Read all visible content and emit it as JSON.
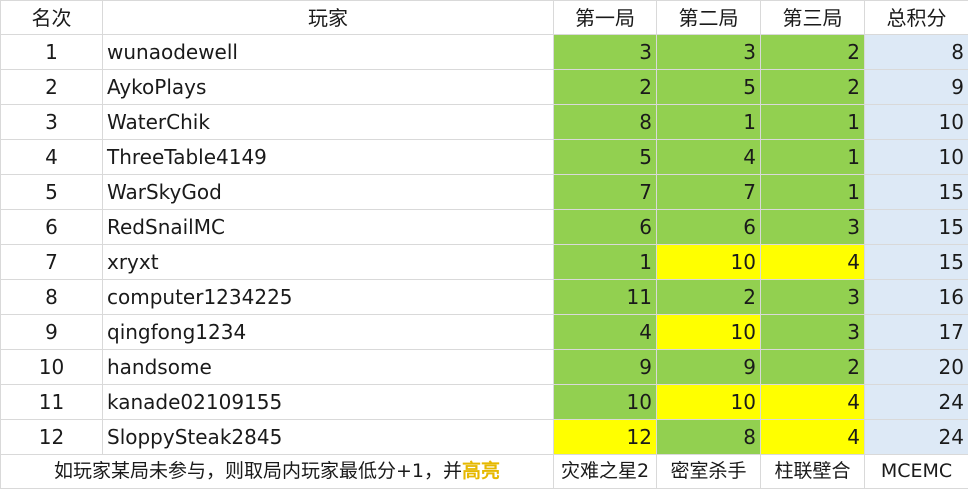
{
  "header": {
    "rank": "名次",
    "player": "玩家",
    "game1": "第一局",
    "game2": "第二局",
    "game3": "第三局",
    "total": "总积分"
  },
  "rows": [
    {
      "rank": "1",
      "player": "wunaodewell",
      "g1": "3",
      "g2": "3",
      "g3": "2",
      "total": "8"
    },
    {
      "rank": "2",
      "player": "AykoPlays",
      "g1": "2",
      "g2": "5",
      "g3": "2",
      "total": "9"
    },
    {
      "rank": "3",
      "player": "WaterChik",
      "g1": "8",
      "g2": "1",
      "g3": "1",
      "total": "10"
    },
    {
      "rank": "4",
      "player": "ThreeTable4149",
      "g1": "5",
      "g2": "4",
      "g3": "1",
      "total": "10"
    },
    {
      "rank": "5",
      "player": "WarSkyGod",
      "g1": "7",
      "g2": "7",
      "g3": "1",
      "total": "15"
    },
    {
      "rank": "6",
      "player": "RedSnailMC",
      "g1": "6",
      "g2": "6",
      "g3": "3",
      "total": "15"
    },
    {
      "rank": "7",
      "player": "xryxt",
      "g1": "1",
      "g2": "10",
      "g3": "4",
      "total": "15"
    },
    {
      "rank": "8",
      "player": "computer1234225",
      "g1": "11",
      "g2": "2",
      "g3": "3",
      "total": "16"
    },
    {
      "rank": "9",
      "player": "qingfong1234",
      "g1": "4",
      "g2": "10",
      "g3": "3",
      "total": "17"
    },
    {
      "rank": "10",
      "player": "handsome",
      "g1": "9",
      "g2": "9",
      "g3": "2",
      "total": "20"
    },
    {
      "rank": "11",
      "player": "kanade02109155",
      "g1": "10",
      "g2": "10",
      "g3": "4",
      "total": "24"
    },
    {
      "rank": "12",
      "player": "SloppySteak2845",
      "g1": "12",
      "g2": "8",
      "g3": "4",
      "total": "24"
    }
  ],
  "highlighted_cells": {
    "7": [
      "g2",
      "g3"
    ],
    "9": [
      "g2"
    ],
    "11": [
      "g2",
      "g3"
    ],
    "12": [
      "g1",
      "g3"
    ]
  },
  "footer": {
    "note_main": "如玩家某局未参与，则取局内玩家最低分+1，并",
    "note_highlight": "高亮",
    "game1": "灾难之星2",
    "game2": "密室杀手",
    "game3": "柱联壁合",
    "total": "MCEMC"
  },
  "colors": {
    "game_cell": "#92d050",
    "highlight_cell": "#ffff00",
    "total_cell": "#dde9f6",
    "highlight_text": "#e6b800",
    "grid": "#d9d9d9"
  }
}
